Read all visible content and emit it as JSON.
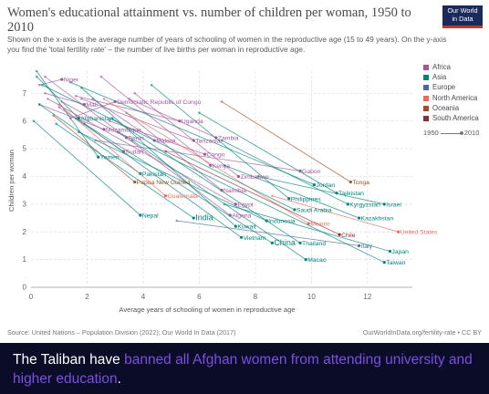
{
  "header": {
    "title": "Women's educational attainment vs. number of children per woman, 1950 to 2010",
    "subtitle": "Shown on the x-axis is the average number of years of schooling of women in the reproductive age (15 to 49 years). On the y-axis you find the 'total fertility rate' – the number of live births per woman in reproductive age.",
    "logo_line1": "Our World",
    "logo_line2": "in Data"
  },
  "legend": {
    "items": [
      {
        "label": "Africa",
        "color": "#a2559c"
      },
      {
        "label": "Asia",
        "color": "#00847e"
      },
      {
        "label": "Europe",
        "color": "#4c6a9c"
      },
      {
        "label": "North America",
        "color": "#e56e5a"
      },
      {
        "label": "Oceania",
        "color": "#9a5129"
      },
      {
        "label": "South America",
        "color": "#883039"
      }
    ],
    "time_start": "1950",
    "time_end": "2010"
  },
  "footer": {
    "source": "Source: United Nations – Population Division (2022); Our World In Data (2017)",
    "url": "OurWorldInData.org/fertility-rate • CC BY"
  },
  "banner": {
    "prefix": "The Taliban have ",
    "highlight": "banned all Afghan women from attending university and higher education",
    "suffix": "."
  },
  "chart_data": {
    "type": "scatter",
    "xlabel": "Average years of schooling of women in reproductive age",
    "ylabel": "Children per woman",
    "xlim": [
      0,
      13.6
    ],
    "ylim": [
      0,
      7.8
    ],
    "xticks": [
      0,
      2,
      4,
      6,
      8,
      10,
      12
    ],
    "yticks": [
      0,
      1,
      2,
      3,
      4,
      5,
      6,
      7
    ],
    "grid": true,
    "legend_position": "right",
    "series": [
      {
        "name": "Niger",
        "region": "Africa",
        "x": [
          0.3,
          1.1
        ],
        "y": [
          7.3,
          7.5
        ]
      },
      {
        "name": "Democratic Republic of Congo",
        "region": "Africa",
        "x": [
          1.4,
          3.0
        ],
        "y": [
          6.1,
          6.7
        ]
      },
      {
        "name": "Mali",
        "region": "Africa",
        "x": [
          0.5,
          1.9
        ],
        "y": [
          7.0,
          6.6
        ]
      },
      {
        "name": "Afghanistan",
        "region": "Asia",
        "x": [
          0.2,
          1.7
        ],
        "y": [
          7.6,
          6.1
        ]
      },
      {
        "name": "Uganda",
        "region": "Africa",
        "x": [
          1.6,
          5.3
        ],
        "y": [
          6.9,
          6.0
        ]
      },
      {
        "name": "Mozambique",
        "region": "Africa",
        "x": [
          0.3,
          2.6
        ],
        "y": [
          6.6,
          5.7
        ]
      },
      {
        "name": "Benin",
        "region": "Africa",
        "x": [
          1.1,
          3.4
        ],
        "y": [
          6.7,
          5.4
        ]
      },
      {
        "name": "Malawi",
        "region": "Africa",
        "x": [
          2.2,
          4.4
        ],
        "y": [
          6.8,
          5.3
        ]
      },
      {
        "name": "Tanzania",
        "region": "Africa",
        "x": [
          1.8,
          5.8
        ],
        "y": [
          6.8,
          5.3
        ]
      },
      {
        "name": "Zambia",
        "region": "Africa",
        "x": [
          3.5,
          6.6
        ],
        "y": [
          6.8,
          5.4
        ]
      },
      {
        "name": "Sudan",
        "region": "Africa",
        "x": [
          1.0,
          3.3
        ],
        "y": [
          6.5,
          4.9
        ]
      },
      {
        "name": "Yemen",
        "region": "Asia",
        "x": [
          0.2,
          2.4
        ],
        "y": [
          7.8,
          4.7
        ]
      },
      {
        "name": "Congo",
        "region": "Africa",
        "x": [
          2.8,
          6.2
        ],
        "y": [
          6.0,
          4.8
        ]
      },
      {
        "name": "Kenya",
        "region": "Africa",
        "x": [
          2.5,
          6.4
        ],
        "y": [
          7.6,
          4.4
        ]
      },
      {
        "name": "Pakistan",
        "region": "Asia",
        "x": [
          0.3,
          3.9
        ],
        "y": [
          6.6,
          4.1
        ]
      },
      {
        "name": "Zimbabwe",
        "region": "Africa",
        "x": [
          3.7,
          7.4
        ],
        "y": [
          7.0,
          4.0
        ]
      },
      {
        "name": "Gabon",
        "region": "Africa",
        "x": [
          2.3,
          9.6
        ],
        "y": [
          5.3,
          4.2
        ]
      },
      {
        "name": "Tonga",
        "region": "Oceania",
        "x": [
          6.8,
          11.4
        ],
        "y": [
          6.7,
          3.8
        ]
      },
      {
        "name": "Papua New Guinea",
        "region": "Oceania",
        "x": [
          0.8,
          3.7
        ],
        "y": [
          6.2,
          3.8
        ]
      },
      {
        "name": "Jordan",
        "region": "Asia",
        "x": [
          1.4,
          10.1
        ],
        "y": [
          7.4,
          3.7
        ]
      },
      {
        "name": "Namibia",
        "region": "Africa",
        "x": [
          3.4,
          6.8
        ],
        "y": [
          6.3,
          3.5
        ]
      },
      {
        "name": "Tajikistan",
        "region": "Asia",
        "x": [
          6.0,
          10.9
        ],
        "y": [
          6.3,
          3.4
        ]
      },
      {
        "name": "Guatemala",
        "region": "North America",
        "x": [
          1.0,
          4.8
        ],
        "y": [
          6.6,
          3.3
        ]
      },
      {
        "name": "Philippines",
        "region": "Asia",
        "x": [
          4.3,
          9.2
        ],
        "y": [
          7.3,
          3.2
        ]
      },
      {
        "name": "Kyrgyzstan",
        "region": "Asia",
        "x": [
          6.8,
          11.3
        ],
        "y": [
          5.3,
          3.0
        ]
      },
      {
        "name": "Israel",
        "region": "Asia",
        "x": [
          8.1,
          12.6
        ],
        "y": [
          4.0,
          3.0
        ]
      },
      {
        "name": "Egypt",
        "region": "Africa",
        "x": [
          0.6,
          7.3
        ],
        "y": [
          6.8,
          3.0
        ]
      },
      {
        "name": "Saudi Arabia",
        "region": "Asia",
        "x": [
          0.4,
          9.4
        ],
        "y": [
          7.3,
          2.8
        ]
      },
      {
        "name": "Algeria",
        "region": "Africa",
        "x": [
          0.5,
          7.1
        ],
        "y": [
          7.6,
          2.6
        ]
      },
      {
        "name": "Kazakhstan",
        "region": "Asia",
        "x": [
          6.9,
          11.7
        ],
        "y": [
          4.4,
          2.5
        ]
      },
      {
        "name": "Nepal",
        "region": "Asia",
        "x": [
          0.1,
          3.9
        ],
        "y": [
          6.0,
          2.6
        ]
      },
      {
        "name": "India",
        "region": "Asia",
        "x": [
          0.9,
          5.8
        ],
        "y": [
          5.9,
          2.5
        ]
      },
      {
        "name": "Indonesia",
        "region": "Asia",
        "x": [
          1.7,
          8.4
        ],
        "y": [
          5.6,
          2.4
        ]
      },
      {
        "name": "Mexico",
        "region": "North America",
        "x": [
          2.6,
          9.9
        ],
        "y": [
          6.8,
          2.3
        ]
      },
      {
        "name": "Kuwait",
        "region": "Asia",
        "x": [
          1.8,
          7.3
        ],
        "y": [
          7.2,
          2.2
        ]
      },
      {
        "name": "Vietnam",
        "region": "Asia",
        "x": [
          1.9,
          7.5
        ],
        "y": [
          5.9,
          1.8
        ]
      },
      {
        "name": "Chile",
        "region": "South America",
        "x": [
          4.8,
          11.0
        ],
        "y": [
          4.9,
          1.9
        ]
      },
      {
        "name": "United States",
        "region": "North America",
        "x": [
          8.6,
          13.1
        ],
        "y": [
          3.3,
          2.0
        ]
      },
      {
        "name": "China",
        "region": "Asia",
        "x": [
          1.6,
          8.6
        ],
        "y": [
          6.1,
          1.6
        ]
      },
      {
        "name": "Thailand",
        "region": "Asia",
        "x": [
          2.9,
          9.6
        ],
        "y": [
          6.1,
          1.6
        ]
      },
      {
        "name": "Italy",
        "region": "Europe",
        "x": [
          5.2,
          11.7
        ],
        "y": [
          2.4,
          1.5
        ]
      },
      {
        "name": "Japan",
        "region": "Asia",
        "x": [
          6.9,
          12.8
        ],
        "y": [
          3.0,
          1.3
        ]
      },
      {
        "name": "Macao",
        "region": "Asia",
        "x": [
          3.6,
          9.8
        ],
        "y": [
          5.3,
          1.0
        ]
      },
      {
        "name": "Taiwan",
        "region": "Asia",
        "x": [
          3.1,
          12.6
        ],
        "y": [
          5.6,
          0.9
        ]
      }
    ]
  }
}
